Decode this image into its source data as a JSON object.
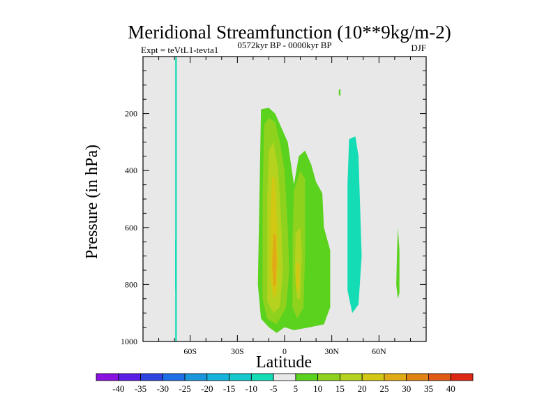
{
  "chart_data": {
    "type": "filled-contour",
    "title": "Meridional Streamfunction (10**9kg/m-2)",
    "subtitle_left": "Expt = teVtL1-tevta1",
    "subtitle_center": "0572kyr BP - 0000kyr BP",
    "subtitle_right": "DJF",
    "xlabel": "Latitude",
    "ylabel": "Pressure (in hPa)",
    "xlim": [
      -90,
      90
    ],
    "ylim": [
      1000,
      0
    ],
    "x_ticks": [
      {
        "value": -60,
        "label": "60S"
      },
      {
        "value": -30,
        "label": "30S"
      },
      {
        "value": 0,
        "label": "0"
      },
      {
        "value": 30,
        "label": "30N"
      },
      {
        "value": 60,
        "label": "60N"
      }
    ],
    "y_ticks": [
      {
        "value": 200,
        "label": "200"
      },
      {
        "value": 400,
        "label": "400"
      },
      {
        "value": 600,
        "label": "600"
      },
      {
        "value": 800,
        "label": "800"
      },
      {
        "value": 1000,
        "label": "1000"
      }
    ],
    "colorbar": {
      "labels": [
        "-40",
        "-35",
        "-30",
        "-25",
        "-20",
        "-15",
        "-10",
        "-5",
        "5",
        "10",
        "15",
        "20",
        "25",
        "30",
        "35",
        "40"
      ],
      "colors": [
        "#8a12e0",
        "#5a1ee6",
        "#2f45e0",
        "#1f6fe6",
        "#1996dc",
        "#14b4dc",
        "#14c8cc",
        "#14dcb4",
        "#e8e8e8",
        "#5ad21e",
        "#8ed21e",
        "#b4d21e",
        "#d2c814",
        "#e0aa14",
        "#e08214",
        "#e05a14",
        "#dc2814"
      ]
    },
    "background_color": "#e8e8e8",
    "regions": [
      {
        "name": "band-5-a",
        "level": "-5",
        "color": "#14dcb4",
        "points": [
          [
            -69.5,
            2
          ],
          [
            -68.5,
            2
          ],
          [
            -68.5,
            1000
          ],
          [
            -69.5,
            1000
          ]
        ]
      },
      {
        "name": "band-5-b",
        "level": "-5",
        "color": "#14dcb4",
        "points": [
          [
            -69.6,
            640
          ],
          [
            -68.6,
            640
          ],
          [
            -68.8,
            810
          ],
          [
            -69.2,
            840
          ],
          [
            -69.6,
            810
          ]
        ]
      },
      {
        "name": "band-5-c",
        "level": "-5",
        "color": "#14dcb4",
        "points": [
          [
            41,
            290
          ],
          [
            45,
            280
          ],
          [
            47,
            350
          ],
          [
            49,
            700
          ],
          [
            47,
            870
          ],
          [
            43,
            900
          ],
          [
            40,
            820
          ],
          [
            40,
            450
          ]
        ]
      },
      {
        "name": "band5-a",
        "level": "5",
        "color": "#5ad21e",
        "points": [
          [
            34.5,
            118
          ],
          [
            35.5,
            112
          ],
          [
            35.5,
            138
          ],
          [
            34.5,
            135
          ]
        ]
      },
      {
        "name": "band5-b",
        "level": "5",
        "color": "#5ad21e",
        "points": [
          [
            -15,
            185
          ],
          [
            -10,
            180
          ],
          [
            -6,
            200
          ],
          [
            2,
            300
          ],
          [
            6,
            450
          ],
          [
            9,
            350
          ],
          [
            13,
            330
          ],
          [
            17,
            380
          ],
          [
            20,
            440
          ],
          [
            24,
            480
          ],
          [
            25,
            600
          ],
          [
            29,
            680
          ],
          [
            29,
            880
          ],
          [
            25,
            940
          ],
          [
            16,
            950
          ],
          [
            6,
            960
          ],
          [
            0,
            950
          ],
          [
            -5,
            970
          ],
          [
            -10,
            950
          ],
          [
            -15,
            920
          ],
          [
            -17,
            800
          ],
          [
            -16,
            500
          ]
        ]
      },
      {
        "name": "band5-c",
        "level": "5",
        "color": "#5ad21e",
        "points": [
          [
            72,
            600
          ],
          [
            73,
            680
          ],
          [
            73,
            830
          ],
          [
            72,
            850
          ],
          [
            71,
            800
          ],
          [
            71.5,
            680
          ]
        ]
      },
      {
        "name": "band10-a",
        "level": "10",
        "color": "#8ed21e",
        "points": [
          [
            -13,
            240
          ],
          [
            -10,
            215
          ],
          [
            -6,
            230
          ],
          [
            -3,
            300
          ],
          [
            0,
            400
          ],
          [
            2,
            600
          ],
          [
            3,
            750
          ],
          [
            1,
            880
          ],
          [
            -5,
            940
          ],
          [
            -11,
            920
          ],
          [
            -14,
            850
          ],
          [
            -14,
            500
          ]
        ]
      },
      {
        "name": "band10-b",
        "level": "10",
        "color": "#8ed21e",
        "points": [
          [
            6,
            470
          ],
          [
            10,
            400
          ],
          [
            13,
            430
          ],
          [
            13,
            700
          ],
          [
            12,
            880
          ],
          [
            8,
            920
          ],
          [
            5,
            880
          ],
          [
            5,
            650
          ]
        ]
      },
      {
        "name": "band15-a",
        "level": "15",
        "color": "#b4d21e",
        "points": [
          [
            -10,
            330
          ],
          [
            -7,
            300
          ],
          [
            -4,
            400
          ],
          [
            -2,
            600
          ],
          [
            -1,
            750
          ],
          [
            -3,
            880
          ],
          [
            -7,
            900
          ],
          [
            -11,
            860
          ],
          [
            -11,
            500
          ]
        ]
      },
      {
        "name": "band15-b",
        "level": "15",
        "color": "#b4d21e",
        "points": [
          [
            7,
            620
          ],
          [
            10,
            600
          ],
          [
            11,
            700
          ],
          [
            10,
            850
          ],
          [
            8,
            850
          ],
          [
            6.5,
            750
          ]
        ]
      },
      {
        "name": "band20-a",
        "level": "20",
        "color": "#d2c814",
        "points": [
          [
            -8,
            420
          ],
          [
            -6,
            430
          ],
          [
            -5,
            550
          ],
          [
            -4,
            700
          ],
          [
            -5,
            830
          ],
          [
            -7,
            850
          ],
          [
            -9,
            780
          ],
          [
            -9,
            550
          ]
        ]
      },
      {
        "name": "band20-b",
        "level": "20",
        "color": "#d2c814",
        "points": [
          [
            7.5,
            720
          ],
          [
            9.5,
            730
          ],
          [
            9.5,
            800
          ],
          [
            8,
            830
          ],
          [
            7,
            790
          ]
        ]
      },
      {
        "name": "band25-a",
        "level": "25",
        "color": "#e0aa14",
        "points": [
          [
            -7,
            620
          ],
          [
            -5.5,
            630
          ],
          [
            -5,
            720
          ],
          [
            -5.5,
            800
          ],
          [
            -7,
            810
          ],
          [
            -8,
            730
          ]
        ]
      }
    ]
  }
}
